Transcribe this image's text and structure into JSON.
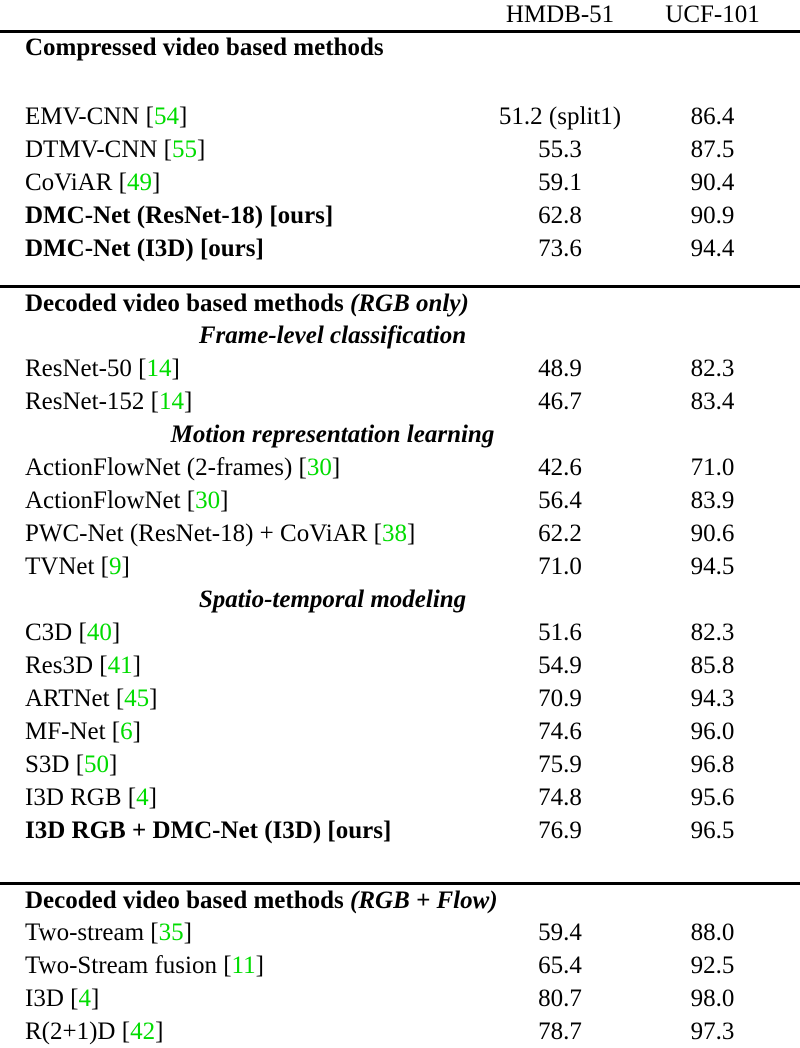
{
  "colors": {
    "citation": "#00dc00",
    "text": "#000000",
    "background": "#ffffff",
    "rule": "#000000"
  },
  "header": {
    "hmdb": "HMDB-51",
    "ucf": "UCF-101"
  },
  "sec1": {
    "title": "Compressed video based methods",
    "rows": [
      {
        "pre": "EMV-CNN [",
        "cite": "54",
        "post": "]",
        "hmdb": "51.2 (split1)",
        "ucf": "86.4"
      },
      {
        "pre": "DTMV-CNN [",
        "cite": "55",
        "post": "]",
        "hmdb": "55.3",
        "ucf": "87.5"
      },
      {
        "pre": "CoViAR [",
        "cite": "49",
        "post": "]",
        "hmdb": "59.1",
        "ucf": "90.4"
      },
      {
        "pre": "DMC-Net (ResNet-18) [ours]",
        "cite": "",
        "post": "",
        "hmdb": "62.8",
        "ucf": "90.9"
      },
      {
        "pre": "DMC-Net (I3D) [ours]",
        "cite": "",
        "post": "",
        "hmdb": "73.6",
        "ucf": "94.4"
      }
    ]
  },
  "sec2": {
    "title": "Decoded video based methods",
    "title_note": "(RGB only)",
    "sub1": "Frame-level classification",
    "rows1": [
      {
        "pre": "ResNet-50 [",
        "cite": "14",
        "post": "]",
        "hmdb": "48.9",
        "ucf": "82.3"
      },
      {
        "pre": "ResNet-152 [",
        "cite": "14",
        "post": "]",
        "hmdb": "46.7",
        "ucf": "83.4"
      }
    ],
    "sub2": "Motion representation learning",
    "rows2": [
      {
        "pre": "ActionFlowNet (2-frames) [",
        "cite": "30",
        "post": "]",
        "hmdb": "42.6",
        "ucf": "71.0"
      },
      {
        "pre": "ActionFlowNet [",
        "cite": "30",
        "post": "]",
        "hmdb": "56.4",
        "ucf": "83.9"
      },
      {
        "pre": "PWC-Net (ResNet-18) + CoViAR [",
        "cite": "38",
        "post": "]",
        "hmdb": "62.2",
        "ucf": "90.6"
      },
      {
        "pre": "TVNet [",
        "cite": "9",
        "post": "]",
        "hmdb": "71.0",
        "ucf": "94.5"
      }
    ],
    "sub3": "Spatio-temporal modeling",
    "rows3": [
      {
        "pre": "C3D [",
        "cite": "40",
        "post": "]",
        "hmdb": "51.6",
        "ucf": "82.3"
      },
      {
        "pre": "Res3D [",
        "cite": "41",
        "post": "]",
        "hmdb": "54.9",
        "ucf": "85.8"
      },
      {
        "pre": "ARTNet [",
        "cite": "45",
        "post": "]",
        "hmdb": "70.9",
        "ucf": "94.3"
      },
      {
        "pre": "MF-Net [",
        "cite": "6",
        "post": "]",
        "hmdb": "74.6",
        "ucf": "96.0"
      },
      {
        "pre": "S3D [",
        "cite": "50",
        "post": "]",
        "hmdb": "75.9",
        "ucf": "96.8"
      },
      {
        "pre": "I3D RGB [",
        "cite": "4",
        "post": "]",
        "hmdb": "74.8",
        "ucf": "95.6"
      },
      {
        "pre": "I3D RGB + DMC-Net (I3D) [ours]",
        "cite": "",
        "post": "",
        "hmdb": "76.9",
        "ucf": "96.5"
      }
    ]
  },
  "sec3": {
    "title": "Decoded video based methods",
    "title_note": "(RGB + Flow)",
    "rows": [
      {
        "pre": "Two-stream [",
        "cite": "35",
        "post": "]",
        "hmdb": "59.4",
        "ucf": "88.0"
      },
      {
        "pre": "Two-Stream fusion [",
        "cite": "11",
        "post": "]",
        "hmdb": "65.4",
        "ucf": "92.5"
      },
      {
        "pre": "I3D [",
        "cite": "4",
        "post": "]",
        "hmdb": "80.7",
        "ucf": "98.0"
      },
      {
        "pre": "R(2+1)D [",
        "cite": "42",
        "post": "]",
        "hmdb": "78.7",
        "ucf": "97.3"
      }
    ]
  }
}
